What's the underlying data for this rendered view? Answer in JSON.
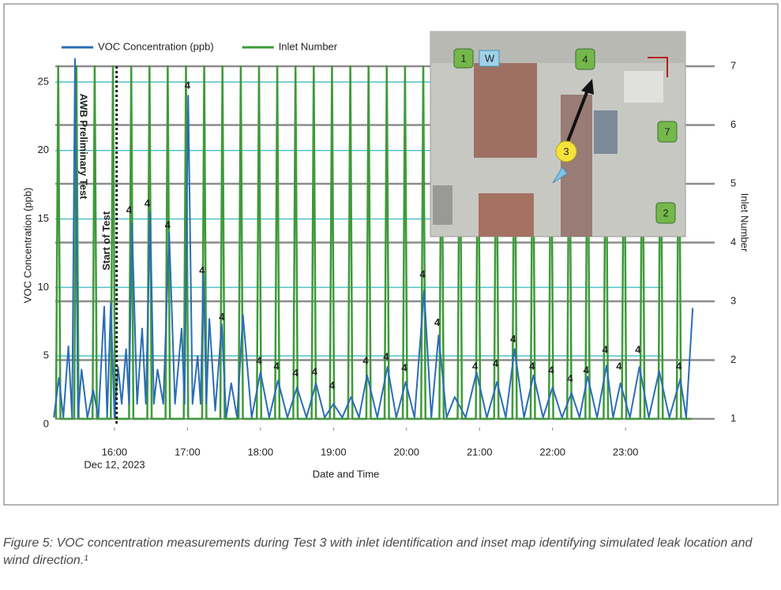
{
  "chart_data": {
    "type": "line",
    "x_label": "Date and Time",
    "y_label": "VOC Concentration (ppb)",
    "y2_label": "Inlet Number",
    "date_label": "Dec 12, 2023",
    "xlim": [
      15.19,
      23.95
    ],
    "xticks": [
      {
        "value": 16,
        "label": "16:00"
      },
      {
        "value": 17,
        "label": "17:00"
      },
      {
        "value": 18,
        "label": "18:00"
      },
      {
        "value": 19,
        "label": "19:00"
      },
      {
        "value": 20,
        "label": "20:00"
      },
      {
        "value": 21,
        "label": "21:00"
      },
      {
        "value": 22,
        "label": "22:00"
      },
      {
        "value": 23,
        "label": "23:00"
      }
    ],
    "ylim": [
      0,
      26.15
    ],
    "yticks": [
      0,
      5,
      10,
      15,
      20,
      25
    ],
    "y2lim": [
      0.906,
      7
    ],
    "y2ticks": [
      1,
      2,
      3,
      4,
      5,
      6,
      7
    ],
    "grid": true,
    "legend": "top-left",
    "series": [
      {
        "name": "Inlet Number",
        "color": "#3f9a3a",
        "axis": "y2",
        "x": [
          15.2,
          15.23,
          15.26,
          15.45,
          15.48,
          15.51,
          15.7,
          15.73,
          15.76,
          15.95,
          15.98,
          16.01,
          16.2,
          16.23,
          16.26,
          16.45,
          16.48,
          16.51,
          16.7,
          16.73,
          16.76,
          16.95,
          16.98,
          17.01,
          17.2,
          17.23,
          17.26,
          17.45,
          17.48,
          17.51,
          17.7,
          17.73,
          17.76,
          17.95,
          17.98,
          18.01,
          18.2,
          18.23,
          18.26,
          18.45,
          18.48,
          18.51,
          18.7,
          18.73,
          18.76,
          18.95,
          18.98,
          19.01,
          19.2,
          19.23,
          19.26,
          19.45,
          19.48,
          19.51,
          19.7,
          19.73,
          19.76,
          19.95,
          19.98,
          20.01,
          20.2,
          20.23,
          20.26,
          20.45,
          20.48,
          20.51,
          20.7,
          20.73,
          20.76,
          20.95,
          20.98,
          21.01,
          21.2,
          21.23,
          21.26,
          21.45,
          21.48,
          21.51,
          21.7,
          21.73,
          21.76,
          21.95,
          21.98,
          22.01,
          22.2,
          22.23,
          22.26,
          22.45,
          22.48,
          22.51,
          22.7,
          22.73,
          22.76,
          22.95,
          22.98,
          23.01,
          23.2,
          23.23,
          23.26,
          23.45,
          23.48,
          23.51,
          23.7,
          23.73,
          23.76,
          23.9
        ],
        "values": [
          1,
          7,
          1,
          1,
          7,
          1,
          1,
          7,
          1,
          1,
          7,
          1,
          1,
          7,
          1,
          1,
          7,
          1,
          1,
          7,
          1,
          1,
          7,
          1,
          1,
          7,
          1,
          1,
          7,
          1,
          1,
          7,
          1,
          1,
          7,
          1,
          1,
          7,
          1,
          1,
          7,
          1,
          1,
          7,
          1,
          1,
          7,
          1,
          1,
          7,
          1,
          1,
          7,
          1,
          1,
          7,
          1,
          1,
          7,
          1,
          1,
          7,
          1,
          1,
          7,
          1,
          1,
          7,
          1,
          1,
          7,
          1,
          1,
          7,
          1,
          1,
          7,
          1,
          1,
          7,
          1,
          1,
          7,
          1,
          1,
          7,
          1,
          1,
          7,
          1,
          1,
          7,
          1,
          1,
          7,
          1,
          1,
          7,
          1,
          1,
          7,
          1,
          1,
          7,
          1,
          1
        ]
      },
      {
        "name": "VOC Concentration (ppb)",
        "color": "#2a6db5",
        "axis": "y",
        "x": [
          15.17,
          15.24,
          15.3,
          15.37,
          15.42,
          15.46,
          15.5,
          15.55,
          15.63,
          15.71,
          15.78,
          15.86,
          15.9,
          15.95,
          16.0,
          16.05,
          16.1,
          16.16,
          16.2,
          16.24,
          16.31,
          16.38,
          16.43,
          16.49,
          16.54,
          16.59,
          16.67,
          16.75,
          16.83,
          16.92,
          16.96,
          17.01,
          17.07,
          17.14,
          17.18,
          17.22,
          17.26,
          17.3,
          17.38,
          17.47,
          17.53,
          17.6,
          17.68,
          17.76,
          17.88,
          18.0,
          18.12,
          18.24,
          18.37,
          18.5,
          18.63,
          18.76,
          18.88,
          19.0,
          19.12,
          19.24,
          19.35,
          19.46,
          19.6,
          19.74,
          19.86,
          19.99,
          20.11,
          20.24,
          20.34,
          20.44,
          20.55,
          20.66,
          20.81,
          20.96,
          21.1,
          21.24,
          21.36,
          21.48,
          21.61,
          21.74,
          21.87,
          22.0,
          22.13,
          22.26,
          22.37,
          22.48,
          22.61,
          22.74,
          22.83,
          22.93,
          23.06,
          23.19,
          23.32,
          23.46,
          23.6,
          23.75,
          23.83,
          23.92
        ],
        "values": [
          0.5,
          3.4,
          0.5,
          5.7,
          0.5,
          26.7,
          0.5,
          4.0,
          0.5,
          2.5,
          0.5,
          8.6,
          0.5,
          8.9,
          0.5,
          4.2,
          1.5,
          5.5,
          1.5,
          14.7,
          1.5,
          7,
          1.5,
          15.5,
          1.5,
          4,
          1.5,
          14,
          1.5,
          7,
          1.5,
          24,
          1.5,
          5,
          1.5,
          11,
          1.5,
          7.7,
          1,
          7.3,
          0.5,
          3,
          0.5,
          8,
          0.5,
          3.8,
          0.5,
          3.2,
          0.5,
          2.7,
          0.5,
          3,
          0.5,
          1.5,
          0.5,
          2,
          0.5,
          3.6,
          0.5,
          4.2,
          0.5,
          3.1,
          0.5,
          9.8,
          0.5,
          6.5,
          0.5,
          2,
          0.5,
          3.8,
          0.5,
          3.1,
          0.5,
          5.5,
          0.5,
          3.6,
          0.5,
          2.7,
          0.5,
          2.3,
          0.5,
          3.5,
          0.5,
          4.3,
          0.5,
          3.0,
          0.5,
          4.2,
          0.5,
          3.9,
          0.5,
          3.3,
          0.5,
          8.5
        ]
      }
    ],
    "vlines": [
      {
        "x": 16.03,
        "label": "Start of Test",
        "y": 13.4
      }
    ],
    "text_annotations": [
      {
        "text": "AWB Preliminary Test",
        "x": 15.57,
        "y": 20.3
      }
    ],
    "annotations": [
      {
        "text": "4",
        "x": 16.2,
        "y": 15.6
      },
      {
        "text": "4",
        "x": 16.45,
        "y": 16.1
      },
      {
        "text": "4",
        "x": 16.73,
        "y": 14.5
      },
      {
        "text": "4",
        "x": 17.0,
        "y": 24.7
      },
      {
        "text": "4",
        "x": 17.2,
        "y": 11.2
      },
      {
        "text": "4",
        "x": 17.47,
        "y": 7.8
      },
      {
        "text": "4",
        "x": 17.98,
        "y": 4.6
      },
      {
        "text": "4",
        "x": 18.22,
        "y": 4.2
      },
      {
        "text": "4",
        "x": 18.48,
        "y": 3.7
      },
      {
        "text": "4",
        "x": 18.74,
        "y": 3.8
      },
      {
        "text": "4",
        "x": 18.98,
        "y": 2.8
      },
      {
        "text": "4",
        "x": 19.44,
        "y": 4.6
      },
      {
        "text": "4",
        "x": 19.72,
        "y": 4.9
      },
      {
        "text": "4",
        "x": 19.97,
        "y": 4.1
      },
      {
        "text": "4",
        "x": 20.22,
        "y": 10.9
      },
      {
        "text": "4",
        "x": 20.42,
        "y": 7.4
      },
      {
        "text": "4",
        "x": 20.94,
        "y": 4.2
      },
      {
        "text": "4",
        "x": 21.22,
        "y": 4.4
      },
      {
        "text": "4",
        "x": 21.46,
        "y": 6.2
      },
      {
        "text": "4",
        "x": 21.72,
        "y": 4.2
      },
      {
        "text": "4",
        "x": 21.98,
        "y": 3.9
      },
      {
        "text": "4",
        "x": 22.24,
        "y": 3.3
      },
      {
        "text": "4",
        "x": 22.46,
        "y": 3.9
      },
      {
        "text": "4",
        "x": 22.72,
        "y": 5.4
      },
      {
        "text": "4",
        "x": 22.91,
        "y": 4.2
      },
      {
        "text": "4",
        "x": 23.17,
        "y": 5.4
      },
      {
        "text": "4",
        "x": 23.73,
        "y": 4.2
      }
    ]
  },
  "inset_map": {
    "labels": [
      "1",
      "W",
      "4",
      "3",
      "7",
      "2"
    ]
  },
  "caption": "Figure 5: VOC concentration measurements during Test 3 with inlet identification and inset map identifying simulated leak location and wind direction.¹"
}
